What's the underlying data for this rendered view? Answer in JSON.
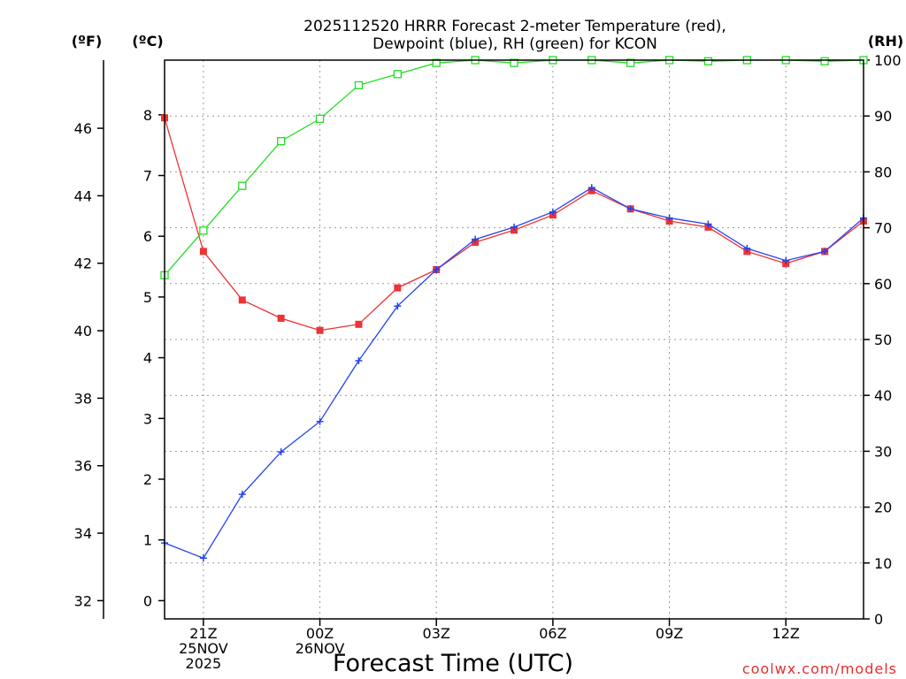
{
  "chart_data": {
    "type": "line",
    "title_line1": "2025112520 HRRR Forecast 2-meter Temperature (red),",
    "title_line2": "Dewpoint (blue), RH (green) for KCON",
    "xlabel": "Forecast Time (UTC)",
    "credit": "coolwx.com/models",
    "units": {
      "fahrenheit": "(ºF)",
      "celsius": "(ºC)",
      "rh": "(RH)"
    },
    "hours": [
      0,
      1,
      2,
      3,
      4,
      5,
      6,
      7,
      8,
      9,
      10,
      11,
      12,
      13,
      14,
      15,
      16,
      17,
      18
    ],
    "x_ticks": [
      {
        "hour": 1,
        "lines": [
          "21Z",
          "25NOV",
          "2025"
        ]
      },
      {
        "hour": 4,
        "lines": [
          "00Z",
          "26NOV"
        ]
      },
      {
        "hour": 7,
        "lines": [
          "03Z"
        ]
      },
      {
        "hour": 10,
        "lines": [
          "06Z"
        ]
      },
      {
        "hour": 13,
        "lines": [
          "09Z"
        ]
      },
      {
        "hour": 16,
        "lines": [
          "12Z"
        ]
      }
    ],
    "celsius_axis": {
      "min": -0.3,
      "max": 8.9,
      "ticks": [
        "0",
        "1",
        "2",
        "3",
        "4",
        "5",
        "6",
        "7",
        "8"
      ]
    },
    "fahrenheit_axis": {
      "ticks": [
        "32",
        "34",
        "36",
        "38",
        "40",
        "42",
        "44",
        "46"
      ]
    },
    "rh_axis": {
      "min": 0,
      "max": 100,
      "ticks": [
        "0",
        "10",
        "20",
        "30",
        "40",
        "50",
        "60",
        "70",
        "80",
        "90",
        "100"
      ]
    },
    "series": [
      {
        "name": "Temperature",
        "units": "C",
        "color": "#ee3333",
        "marker": "filled-square",
        "values": [
          7.95,
          5.75,
          4.95,
          4.65,
          4.45,
          4.55,
          5.15,
          5.45,
          5.9,
          6.1,
          6.35,
          6.75,
          6.45,
          6.25,
          6.15,
          5.75,
          5.55,
          5.75,
          6.25
        ]
      },
      {
        "name": "Dewpoint",
        "units": "C",
        "color": "#2244ee",
        "marker": "plus",
        "values": [
          0.95,
          0.7,
          1.75,
          2.45,
          2.95,
          3.95,
          4.85,
          5.45,
          5.95,
          6.15,
          6.4,
          6.8,
          6.45,
          6.3,
          6.2,
          5.8,
          5.6,
          5.75,
          6.3
        ]
      },
      {
        "name": "RH",
        "units": "%",
        "color": "#22dd22",
        "marker": "open-square",
        "values": [
          61.5,
          69.5,
          77.5,
          85.5,
          89.5,
          95.5,
          97.5,
          99.5,
          100,
          99.5,
          100,
          100,
          99.5,
          100,
          99.8,
          100,
          100,
          99.8,
          100
        ]
      }
    ]
  }
}
